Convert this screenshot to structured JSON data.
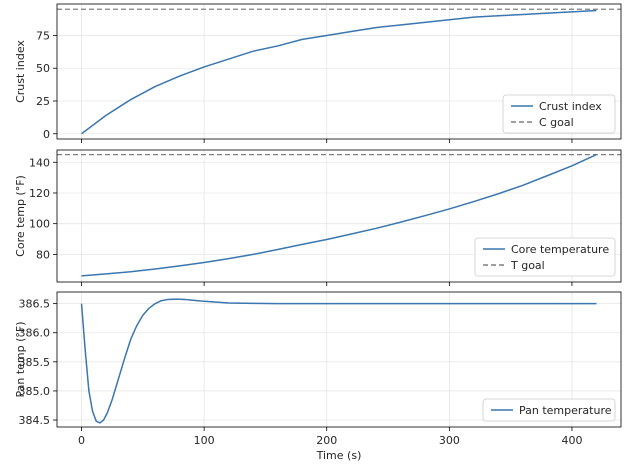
{
  "chart_data": [
    {
      "type": "line",
      "xlim": [
        -20,
        440
      ],
      "ylim": [
        -4,
        99
      ],
      "yticks": [
        0,
        25,
        50,
        75
      ],
      "xticks": [
        0,
        100,
        200,
        300,
        400
      ],
      "show_xticklabels": false,
      "ylabel": "Crust index",
      "grid": true,
      "legend_position": "bottom-right",
      "series": [
        {
          "name": "Crust index",
          "style": "solid",
          "color": "#3a76af",
          "x": [
            0,
            20,
            40,
            60,
            80,
            100,
            120,
            140,
            160,
            180,
            200,
            220,
            240,
            260,
            280,
            300,
            320,
            340,
            360,
            380,
            400,
            420
          ],
          "y": [
            0,
            14,
            26,
            36,
            44,
            51,
            57,
            63,
            67,
            72,
            75,
            78,
            81,
            83,
            85,
            87,
            89,
            90,
            91,
            92,
            93,
            94
          ]
        }
      ],
      "reference_lines": [
        {
          "name": "C goal",
          "y": 95,
          "style": "dashed",
          "color": "#808080"
        }
      ]
    },
    {
      "type": "line",
      "xlim": [
        -20,
        440
      ],
      "ylim": [
        62,
        148
      ],
      "yticks": [
        80,
        100,
        120,
        140
      ],
      "xticks": [
        0,
        100,
        200,
        300,
        400
      ],
      "show_xticklabels": false,
      "ylabel": "Core temp (°F)",
      "grid": true,
      "legend_position": "bottom-right",
      "series": [
        {
          "name": "Core temperature",
          "style": "solid",
          "color": "#3a76af",
          "x": [
            0,
            20,
            40,
            60,
            80,
            100,
            120,
            140,
            160,
            180,
            200,
            220,
            240,
            260,
            280,
            300,
            320,
            340,
            360,
            380,
            400,
            420
          ],
          "y": [
            66,
            67.3,
            68.7,
            70.5,
            72.5,
            74.7,
            77.2,
            80.0,
            83.2,
            86.5,
            89.7,
            93.3,
            96.9,
            100.9,
            105.2,
            109.6,
            114.4,
            119.5,
            125.0,
            131.3,
            137.7,
            145
          ]
        }
      ],
      "reference_lines": [
        {
          "name": "T goal",
          "y": 145,
          "style": "dashed",
          "color": "#808080"
        }
      ]
    },
    {
      "type": "line",
      "xlim": [
        -20,
        440
      ],
      "ylim": [
        384.38,
        386.7
      ],
      "yticks": [
        384.5,
        385.0,
        385.5,
        386.0,
        386.5
      ],
      "xticks": [
        0,
        100,
        200,
        300,
        400
      ],
      "show_xticklabels": true,
      "xlabel": "Time (s)",
      "ylabel": "Pan temp (°F)",
      "grid": true,
      "legend_position": "bottom-right",
      "series": [
        {
          "name": "Pan temperature",
          "style": "solid",
          "color": "#3a76af",
          "x": [
            0,
            3,
            6,
            9,
            12,
            15,
            18,
            21,
            25,
            30,
            35,
            40,
            45,
            50,
            55,
            60,
            65,
            70,
            75,
            80,
            85,
            90,
            95,
            100,
            110,
            120,
            140,
            160,
            200,
            250,
            300,
            350,
            400,
            420
          ],
          "y": [
            386.5,
            385.7,
            385.0,
            384.65,
            384.48,
            384.45,
            384.5,
            384.62,
            384.85,
            385.2,
            385.55,
            385.88,
            386.12,
            386.3,
            386.42,
            386.5,
            386.55,
            386.57,
            386.575,
            386.575,
            386.57,
            386.56,
            386.55,
            386.54,
            386.525,
            386.51,
            386.505,
            386.5,
            386.5,
            386.5,
            386.5,
            386.5,
            386.5,
            386.5
          ]
        }
      ],
      "reference_lines": []
    }
  ]
}
